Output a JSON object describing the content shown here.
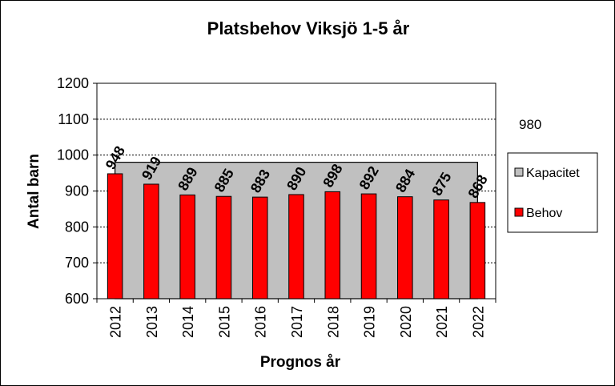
{
  "chart_data": {
    "type": "bar",
    "title": "Platsbehov Viksjö 1-5 år",
    "xlabel": "Prognos år",
    "ylabel": "Antal barn",
    "ylim": [
      600,
      1200
    ],
    "yticks": [
      "600",
      "700",
      "800",
      "900",
      "1000",
      "1100",
      "1200"
    ],
    "categories": [
      "2012",
      "2013",
      "2014",
      "2015",
      "2016",
      "2017",
      "2018",
      "2019",
      "2020",
      "2021",
      "2022"
    ],
    "series": [
      {
        "name": "Kapacitet",
        "type": "area",
        "color": "#c0c0c0",
        "values": [
          980,
          980,
          980,
          980,
          980,
          980,
          980,
          980,
          980,
          980,
          980
        ]
      },
      {
        "name": "Behov",
        "type": "bar",
        "color": "#ff0000",
        "values": [
          948,
          919,
          889,
          885,
          883,
          890,
          898,
          892,
          884,
          875,
          868
        ]
      }
    ],
    "data_labels": [
      "948",
      "919",
      "889",
      "885",
      "883",
      "890",
      "898",
      "892",
      "884",
      "875",
      "868"
    ],
    "annotation": "980",
    "grid": "horizontal dashed",
    "legend_position": "right"
  }
}
